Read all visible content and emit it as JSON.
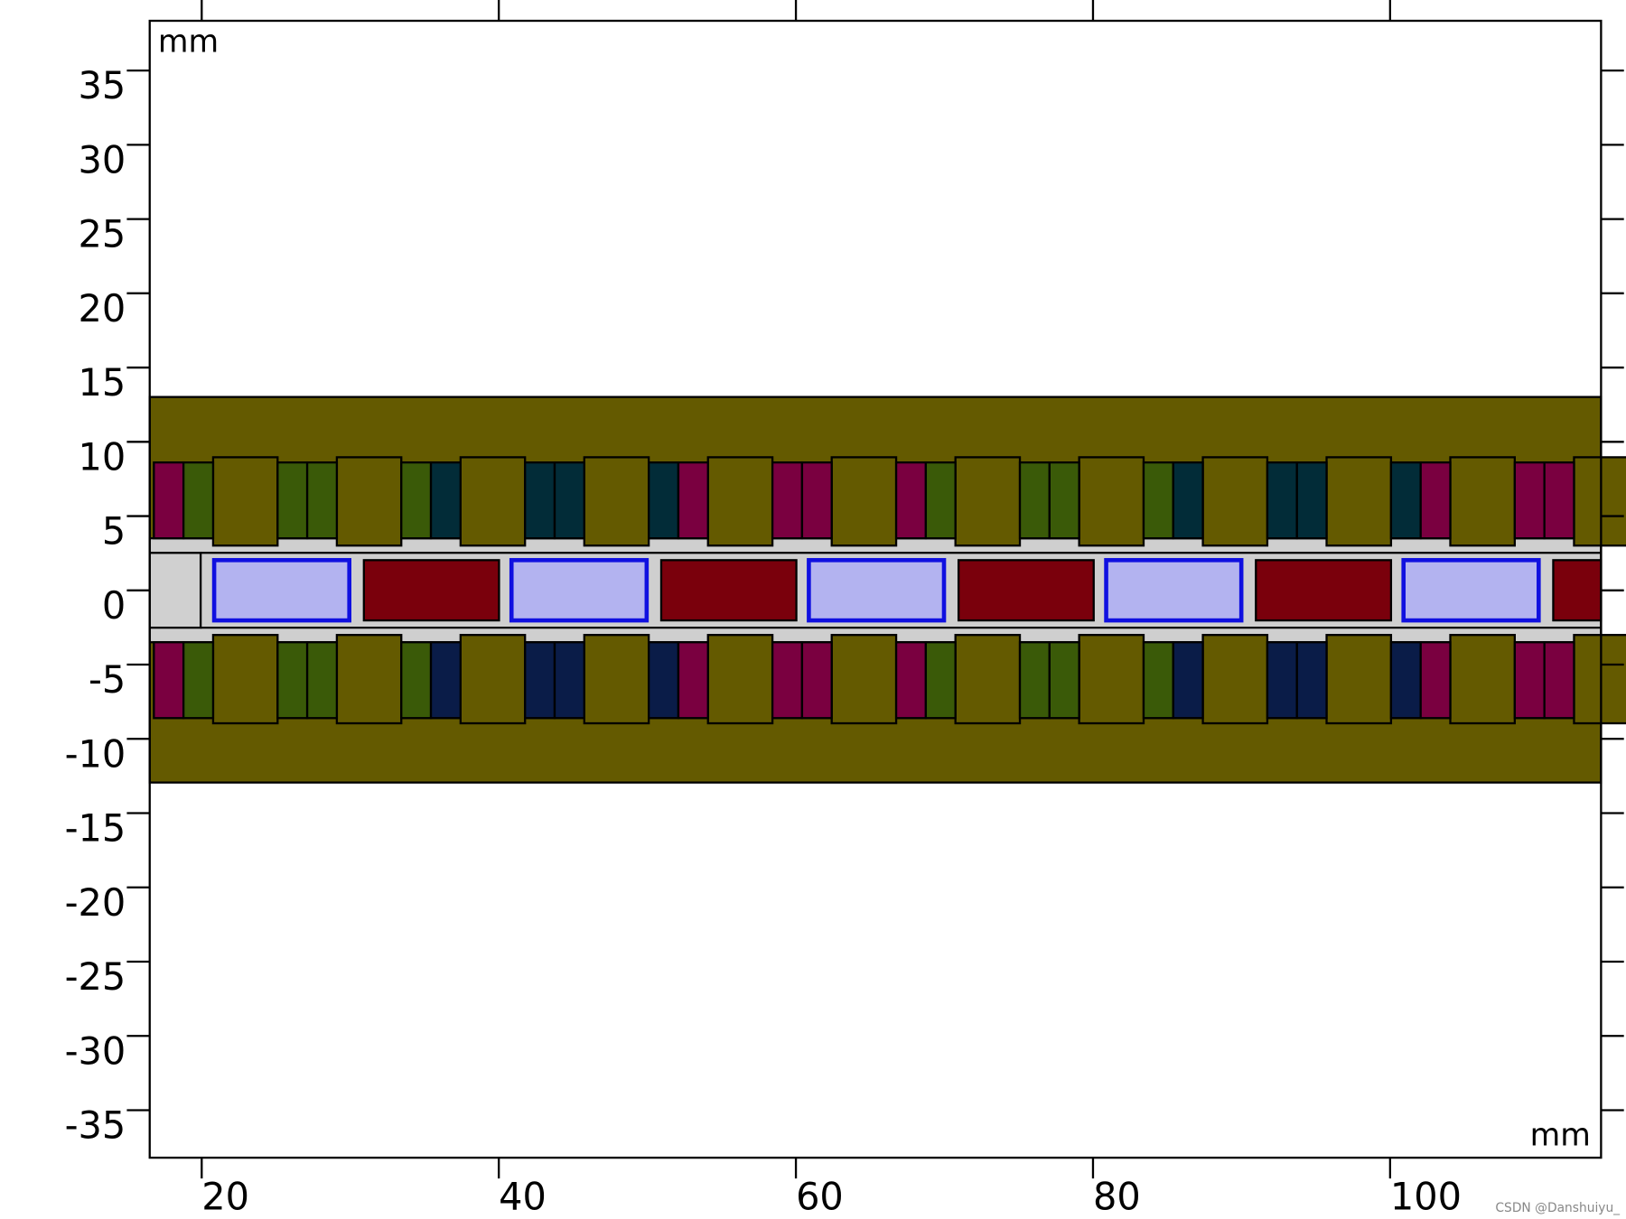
{
  "axes": {
    "xlim": [
      16.5,
      114.2
    ],
    "ylim": [
      -38.2,
      38.35
    ],
    "xticks": [
      20,
      40,
      60,
      80,
      100
    ],
    "yticks": [
      35,
      30,
      25,
      20,
      15,
      10,
      5,
      0,
      -5,
      -10,
      -15,
      -20,
      -25,
      -30,
      -35
    ],
    "x_unit": "mm",
    "y_unit": "mm"
  },
  "watermark": "CSDN @Danshuiyu_"
}
